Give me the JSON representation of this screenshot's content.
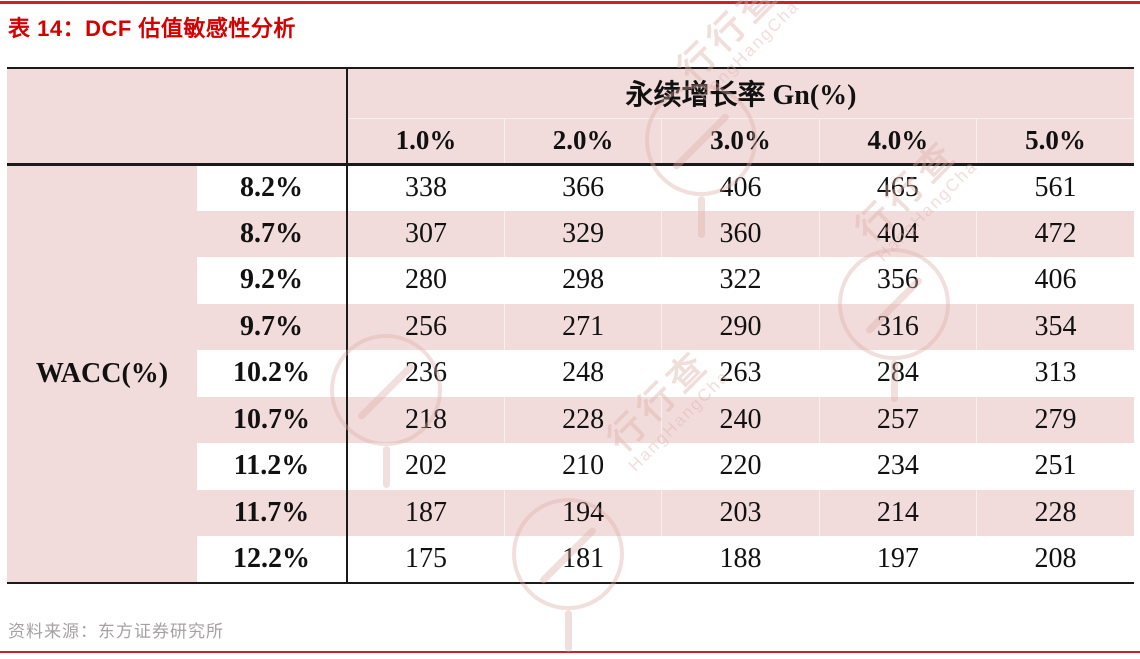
{
  "title": "表 14：DCF 估值敏感性分析",
  "table": {
    "column_group_header": "永续增长率 Gn(%)",
    "row_group_header": "WACC(%)",
    "column_headers": [
      "1.0%",
      "2.0%",
      "3.0%",
      "4.0%",
      "5.0%"
    ],
    "rows": [
      {
        "label": "8.2%",
        "values": [
          "338",
          "366",
          "406",
          "465",
          "561"
        ]
      },
      {
        "label": "8.7%",
        "values": [
          "307",
          "329",
          "360",
          "404",
          "472"
        ]
      },
      {
        "label": "9.2%",
        "values": [
          "280",
          "298",
          "322",
          "356",
          "406"
        ]
      },
      {
        "label": "9.7%",
        "values": [
          "256",
          "271",
          "290",
          "316",
          "354"
        ]
      },
      {
        "label": "10.2%",
        "values": [
          "236",
          "248",
          "263",
          "284",
          "313"
        ]
      },
      {
        "label": "10.7%",
        "values": [
          "218",
          "228",
          "240",
          "257",
          "279"
        ]
      },
      {
        "label": "11.2%",
        "values": [
          "202",
          "210",
          "220",
          "234",
          "251"
        ]
      },
      {
        "label": "11.7%",
        "values": [
          "187",
          "194",
          "203",
          "214",
          "228"
        ]
      },
      {
        "label": "12.2%",
        "values": [
          "175",
          "181",
          "188",
          "197",
          "208"
        ]
      }
    ]
  },
  "footer": {
    "source": "资料来源：东方证券研究所"
  },
  "watermark": {
    "text_cn": "行行查",
    "text_en": "HangHangCha"
  },
  "colors": {
    "accent_red": "#d40000",
    "pink": "#f2dcdb",
    "rule_red": "#cb2227",
    "footer_gray": "#a6a2a2",
    "border_black": "#1a1a1a",
    "watermark": "#dcaea7"
  }
}
